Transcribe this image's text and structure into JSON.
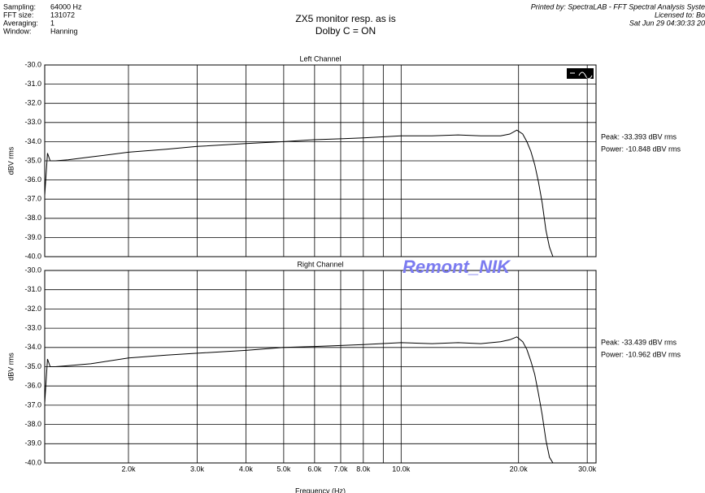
{
  "header": {
    "settings": [
      {
        "label": "Sampling:",
        "value": "64000 Hz"
      },
      {
        "label": "FFT size:",
        "value": "131072"
      },
      {
        "label": "Averaging:",
        "value": "1"
      },
      {
        "label": "Window:",
        "value": "Hanning"
      }
    ],
    "title": "ZX5 monitor resp. as is",
    "subtitle": "Dolby C = ON",
    "printed_by": "Printed by: SpectraLAB - FFT Spectral Analysis Syste",
    "licensed_to": "Licensed to: Bo",
    "date": "Sat Jun 29 04:30:33 20"
  },
  "watermark": "Remont_NIK",
  "chart_data": [
    {
      "type": "line",
      "title": "Left Channel",
      "y_label": "dBV rms",
      "log_x": true,
      "grid": true,
      "xlim": [
        1220,
        31600
      ],
      "ylim": [
        -40,
        -30
      ],
      "xticks": [
        {
          "value": 2000,
          "label": "2.0k"
        },
        {
          "value": 3000,
          "label": "3.0k"
        },
        {
          "value": 4000,
          "label": "4.0k"
        },
        {
          "value": 5000,
          "label": "5.0k"
        },
        {
          "value": 6000,
          "label": "6.0k"
        },
        {
          "value": 7000,
          "label": "7.0k"
        },
        {
          "value": 8000,
          "label": "8.0k"
        },
        {
          "value": 9000,
          "label": null
        },
        {
          "value": 10000,
          "label": "10.0k"
        },
        {
          "value": 20000,
          "label": "20.0k"
        },
        {
          "value": 30000,
          "label": "30.0k"
        }
      ],
      "yticks": [
        {
          "value": -30,
          "label": "-30.0"
        },
        {
          "value": -31,
          "label": "-31.0"
        },
        {
          "value": -32,
          "label": "-32.0"
        },
        {
          "value": -33,
          "label": "-33.0"
        },
        {
          "value": -34,
          "label": "-34.0"
        },
        {
          "value": -35,
          "label": "-35.0"
        },
        {
          "value": -36,
          "label": "-36.0"
        },
        {
          "value": -37,
          "label": "-37.0"
        },
        {
          "value": -38,
          "label": "-38.0"
        },
        {
          "value": -39,
          "label": "-39.0"
        },
        {
          "value": -40,
          "label": "-40.0"
        }
      ],
      "x": [
        1220,
        1240,
        1260,
        1300,
        1400,
        1600,
        2000,
        2500,
        3000,
        4000,
        5000,
        6000,
        7000,
        8000,
        10000,
        12000,
        14000,
        16000,
        18000,
        19000,
        19800,
        20500,
        21000,
        21500,
        22000,
        22500,
        23000,
        23500,
        24000,
        24500,
        25000,
        28000,
        31600
      ],
      "series": [
        {
          "name": null,
          "color": "#000000",
          "values": [
            -36.8,
            -34.6,
            -35.0,
            -35.0,
            -34.95,
            -34.8,
            -34.55,
            -34.4,
            -34.25,
            -34.1,
            -34.0,
            -33.9,
            -33.85,
            -33.8,
            -33.7,
            -33.7,
            -33.65,
            -33.7,
            -33.7,
            -33.6,
            -33.4,
            -33.6,
            -34.0,
            -34.5,
            -35.2,
            -36.1,
            -37.2,
            -38.6,
            -39.5,
            -40,
            -40,
            -40,
            -40
          ]
        }
      ],
      "annotations": [
        "Peak: -33.393 dBV rms",
        "Power: -10.848 dBV rms"
      ]
    },
    {
      "type": "line",
      "title": "Right Channel",
      "y_label": "dBV rms",
      "x_label": "Frequency (Hz)",
      "log_x": true,
      "grid": true,
      "xlim": [
        1220,
        31600
      ],
      "ylim": [
        -40,
        -30
      ],
      "xticks": [
        {
          "value": 2000,
          "label": "2.0k"
        },
        {
          "value": 3000,
          "label": "3.0k"
        },
        {
          "value": 4000,
          "label": "4.0k"
        },
        {
          "value": 5000,
          "label": "5.0k"
        },
        {
          "value": 6000,
          "label": "6.0k"
        },
        {
          "value": 7000,
          "label": "7.0k"
        },
        {
          "value": 8000,
          "label": "8.0k"
        },
        {
          "value": 9000,
          "label": null
        },
        {
          "value": 10000,
          "label": "10.0k"
        },
        {
          "value": 20000,
          "label": "20.0k"
        },
        {
          "value": 30000,
          "label": "30.0k"
        }
      ],
      "yticks": [
        {
          "value": -30,
          "label": "-30.0"
        },
        {
          "value": -31,
          "label": "-31.0"
        },
        {
          "value": -32,
          "label": "-32.0"
        },
        {
          "value": -33,
          "label": "-33.0"
        },
        {
          "value": -34,
          "label": "-34.0"
        },
        {
          "value": -35,
          "label": "-35.0"
        },
        {
          "value": -36,
          "label": "-36.0"
        },
        {
          "value": -37,
          "label": "-37.0"
        },
        {
          "value": -38,
          "label": "-38.0"
        },
        {
          "value": -39,
          "label": "-39.0"
        },
        {
          "value": -40,
          "label": "-40.0"
        }
      ],
      "x": [
        1220,
        1240,
        1260,
        1300,
        1400,
        1600,
        2000,
        2500,
        3000,
        4000,
        5000,
        6000,
        7000,
        8000,
        10000,
        12000,
        14000,
        16000,
        18000,
        19000,
        19800,
        20500,
        21000,
        21500,
        22000,
        22500,
        23000,
        23500,
        24000,
        24500,
        25000,
        28000,
        31600
      ],
      "series": [
        {
          "name": null,
          "color": "#000000",
          "values": [
            -36.9,
            -34.6,
            -35.0,
            -35.0,
            -34.95,
            -34.85,
            -34.55,
            -34.4,
            -34.3,
            -34.15,
            -34.0,
            -33.95,
            -33.9,
            -33.85,
            -33.75,
            -33.8,
            -33.75,
            -33.8,
            -33.7,
            -33.6,
            -33.45,
            -33.7,
            -34.1,
            -34.7,
            -35.4,
            -36.4,
            -37.5,
            -38.8,
            -39.7,
            -40,
            -40,
            -40,
            -40
          ]
        }
      ],
      "annotations": [
        "Peak: -33.439 dBV rms",
        "Power: -10.962 dBV rms"
      ]
    }
  ]
}
